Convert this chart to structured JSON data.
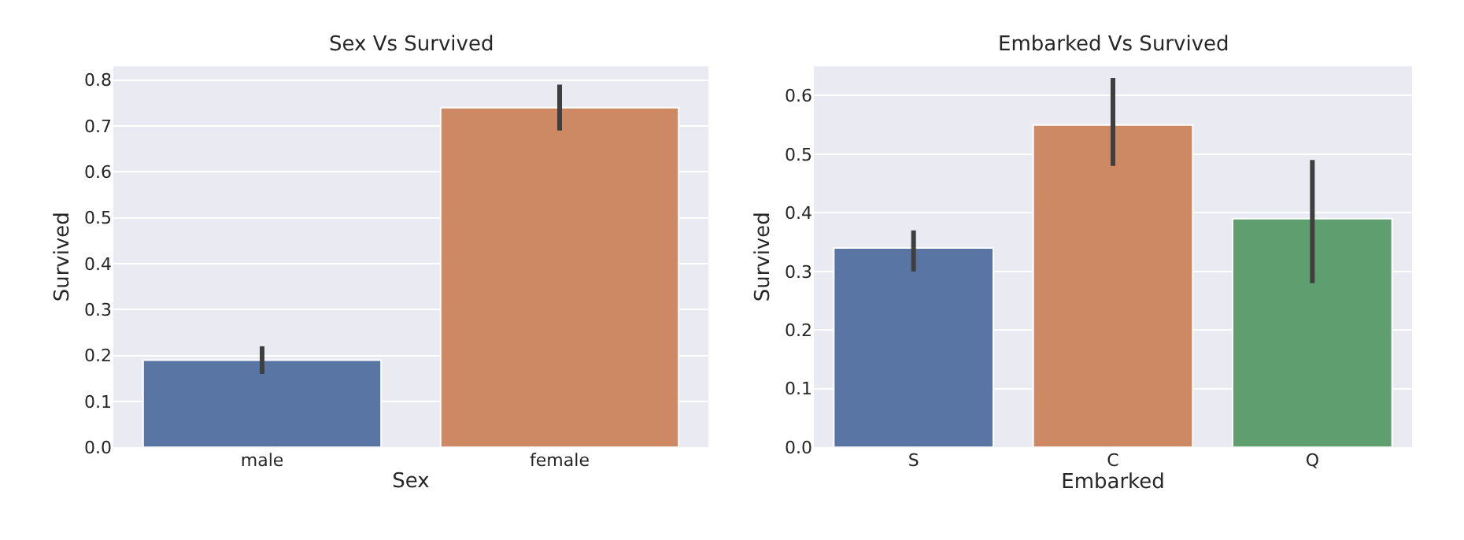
{
  "chart_data": [
    {
      "type": "bar",
      "title": "Sex Vs Survived",
      "xlabel": "Sex",
      "ylabel": "Survived",
      "categories": [
        "male",
        "female"
      ],
      "values": [
        0.19,
        0.74
      ],
      "colors": [
        "#5975a4",
        "#cc8963"
      ],
      "errors": [
        [
          0.16,
          0.22
        ],
        [
          0.69,
          0.79
        ]
      ],
      "ylim": [
        0,
        0.83
      ],
      "yticks": [
        {
          "value": 0,
          "label": "0.0"
        },
        0.1,
        0.2,
        0.3,
        0.4,
        0.5,
        0.6,
        0.7,
        0.8
      ],
      "grid": "y"
    },
    {
      "type": "bar",
      "title": "Embarked Vs Survived",
      "xlabel": "Embarked",
      "ylabel": "Survived",
      "categories": [
        "S",
        "C",
        "Q"
      ],
      "values": [
        0.34,
        0.55,
        0.39
      ],
      "colors": [
        "#5975a4",
        "#cc8963",
        "#5f9e6e"
      ],
      "errors": [
        [
          0.3,
          0.37
        ],
        [
          0.48,
          0.63
        ],
        [
          0.28,
          0.49
        ]
      ],
      "ylim": [
        0,
        0.65
      ],
      "yticks": [
        {
          "value": 0,
          "label": "0.0"
        },
        0.1,
        0.2,
        0.3,
        0.4,
        0.5,
        0.6
      ],
      "grid": "y"
    }
  ]
}
